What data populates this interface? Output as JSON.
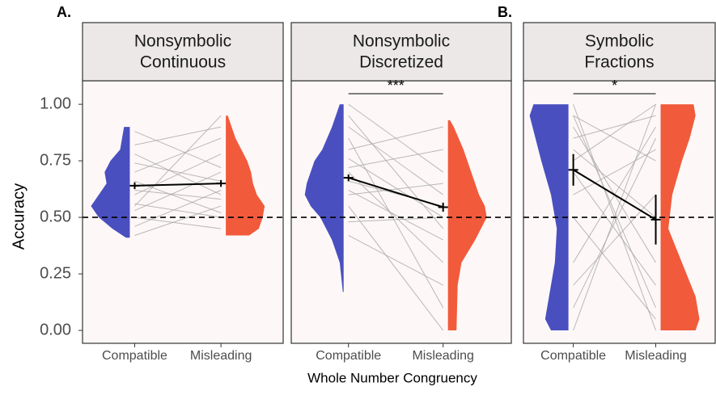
{
  "y_label": "Accuracy",
  "x_label": "Whole Number Congruency",
  "ylim": [
    -0.057,
    1.104
  ],
  "yticks": [
    {
      "value": 0,
      "label": "0.00"
    },
    {
      "value": 0.25,
      "label": "0.25"
    },
    {
      "value": 0.5,
      "label": "0.50"
    },
    {
      "value": 0.75,
      "label": "0.75"
    },
    {
      "value": 1,
      "label": "1.00"
    }
  ],
  "reference_line": 0.5,
  "chart_data": [
    {
      "type": "raincloud",
      "panel_label": "A.",
      "title_lines": [
        "Nonsymbolic",
        "Continuous"
      ],
      "categories": [
        "Compatible",
        "Misleading"
      ],
      "groups": [
        {
          "color": "#4a4fc0",
          "mean": 0.64,
          "error": 0.015,
          "violin": {
            "y": [
              0.41,
              0.45,
              0.5,
              0.55,
              0.6,
              0.65,
              0.7,
              0.75,
              0.8,
              0.85,
              0.9
            ],
            "density": [
              0.1,
              0.45,
              0.8,
              1.0,
              0.8,
              0.6,
              0.65,
              0.5,
              0.25,
              0.2,
              0.15
            ]
          }
        },
        {
          "color": "#f25a3c",
          "mean": 0.65,
          "error": 0.015,
          "violin": {
            "y": [
              0.42,
              0.45,
              0.5,
              0.55,
              0.6,
              0.65,
              0.7,
              0.75,
              0.8,
              0.85,
              0.9,
              0.95
            ],
            "density": [
              0.6,
              0.85,
              0.95,
              1.0,
              0.8,
              0.7,
              0.65,
              0.55,
              0.4,
              0.25,
              0.15,
              0.05
            ]
          }
        }
      ],
      "pairs": [
        [
          0.42,
          0.55
        ],
        [
          0.46,
          0.62
        ],
        [
          0.5,
          0.45
        ],
        [
          0.53,
          0.7
        ],
        [
          0.56,
          0.5
        ],
        [
          0.6,
          0.78
        ],
        [
          0.62,
          0.58
        ],
        [
          0.66,
          0.52
        ],
        [
          0.7,
          0.85
        ],
        [
          0.74,
          0.66
        ],
        [
          0.78,
          0.6
        ],
        [
          0.82,
          0.9
        ],
        [
          0.88,
          0.72
        ],
        [
          0.55,
          0.95
        ]
      ],
      "significance": null
    },
    {
      "type": "raincloud",
      "title_lines": [
        "Nonsymbolic",
        "Discretized"
      ],
      "categories": [
        "Compatible",
        "Misleading"
      ],
      "groups": [
        {
          "color": "#4a4fc0",
          "mean": 0.675,
          "error": 0.015,
          "violin": {
            "y": [
              0.17,
              0.3,
              0.4,
              0.5,
              0.55,
              0.6,
              0.65,
              0.7,
              0.75,
              0.8,
              0.9,
              1.0
            ],
            "density": [
              0.02,
              0.1,
              0.3,
              0.6,
              0.85,
              1.0,
              0.95,
              0.85,
              0.75,
              0.55,
              0.3,
              0.1
            ]
          }
        },
        {
          "color": "#f25a3c",
          "mean": 0.545,
          "error": 0.02,
          "violin": {
            "y": [
              0.0,
              0.2,
              0.3,
              0.4,
              0.5,
              0.55,
              0.6,
              0.7,
              0.8,
              0.9,
              0.93
            ],
            "density": [
              0.22,
              0.25,
              0.35,
              0.7,
              1.0,
              0.95,
              0.8,
              0.6,
              0.4,
              0.15,
              0.05
            ]
          }
        }
      ],
      "pairs": [
        [
          0.42,
          0.2
        ],
        [
          0.48,
          0.5
        ],
        [
          0.55,
          0.0
        ],
        [
          0.6,
          0.65
        ],
        [
          0.62,
          0.4
        ],
        [
          0.66,
          0.55
        ],
        [
          0.7,
          0.3
        ],
        [
          0.72,
          0.8
        ],
        [
          0.76,
          0.5
        ],
        [
          0.8,
          0.9
        ],
        [
          0.85,
          0.1
        ],
        [
          0.9,
          0.6
        ],
        [
          0.95,
          0.45
        ],
        [
          1.0,
          0.7
        ]
      ],
      "significance": "***"
    },
    {
      "type": "raincloud",
      "panel_label": "B.",
      "title_lines": [
        "Symbolic",
        "Fractions"
      ],
      "categories": [
        "Compatible",
        "Misleading"
      ],
      "groups": [
        {
          "color": "#4a4fc0",
          "mean": 0.71,
          "error": 0.07,
          "violin": {
            "y": [
              0.0,
              0.05,
              0.15,
              0.3,
              0.45,
              0.6,
              0.75,
              0.85,
              0.95,
              1.0
            ],
            "density": [
              0.45,
              0.6,
              0.5,
              0.35,
              0.3,
              0.45,
              0.7,
              0.85,
              1.0,
              0.9
            ]
          }
        },
        {
          "color": "#f25a3c",
          "mean": 0.49,
          "error": 0.11,
          "violin": {
            "y": [
              0.0,
              0.05,
              0.15,
              0.3,
              0.45,
              0.6,
              0.75,
              0.85,
              0.95,
              1.0
            ],
            "density": [
              0.9,
              1.0,
              0.9,
              0.55,
              0.2,
              0.3,
              0.55,
              0.75,
              0.9,
              0.85
            ]
          }
        }
      ],
      "pairs": [
        [
          1.0,
          0.0
        ],
        [
          0.95,
          0.1
        ],
        [
          0.9,
          0.3
        ],
        [
          0.85,
          0.95
        ],
        [
          0.8,
          0.5
        ],
        [
          0.75,
          1.0
        ],
        [
          0.7,
          0.2
        ],
        [
          0.6,
          0.8
        ],
        [
          0.5,
          0.05
        ],
        [
          0.3,
          0.9
        ],
        [
          0.1,
          0.85
        ],
        [
          0.0,
          1.0
        ],
        [
          0.2,
          0.6
        ],
        [
          0.95,
          0.75
        ]
      ],
      "significance": "*"
    }
  ]
}
